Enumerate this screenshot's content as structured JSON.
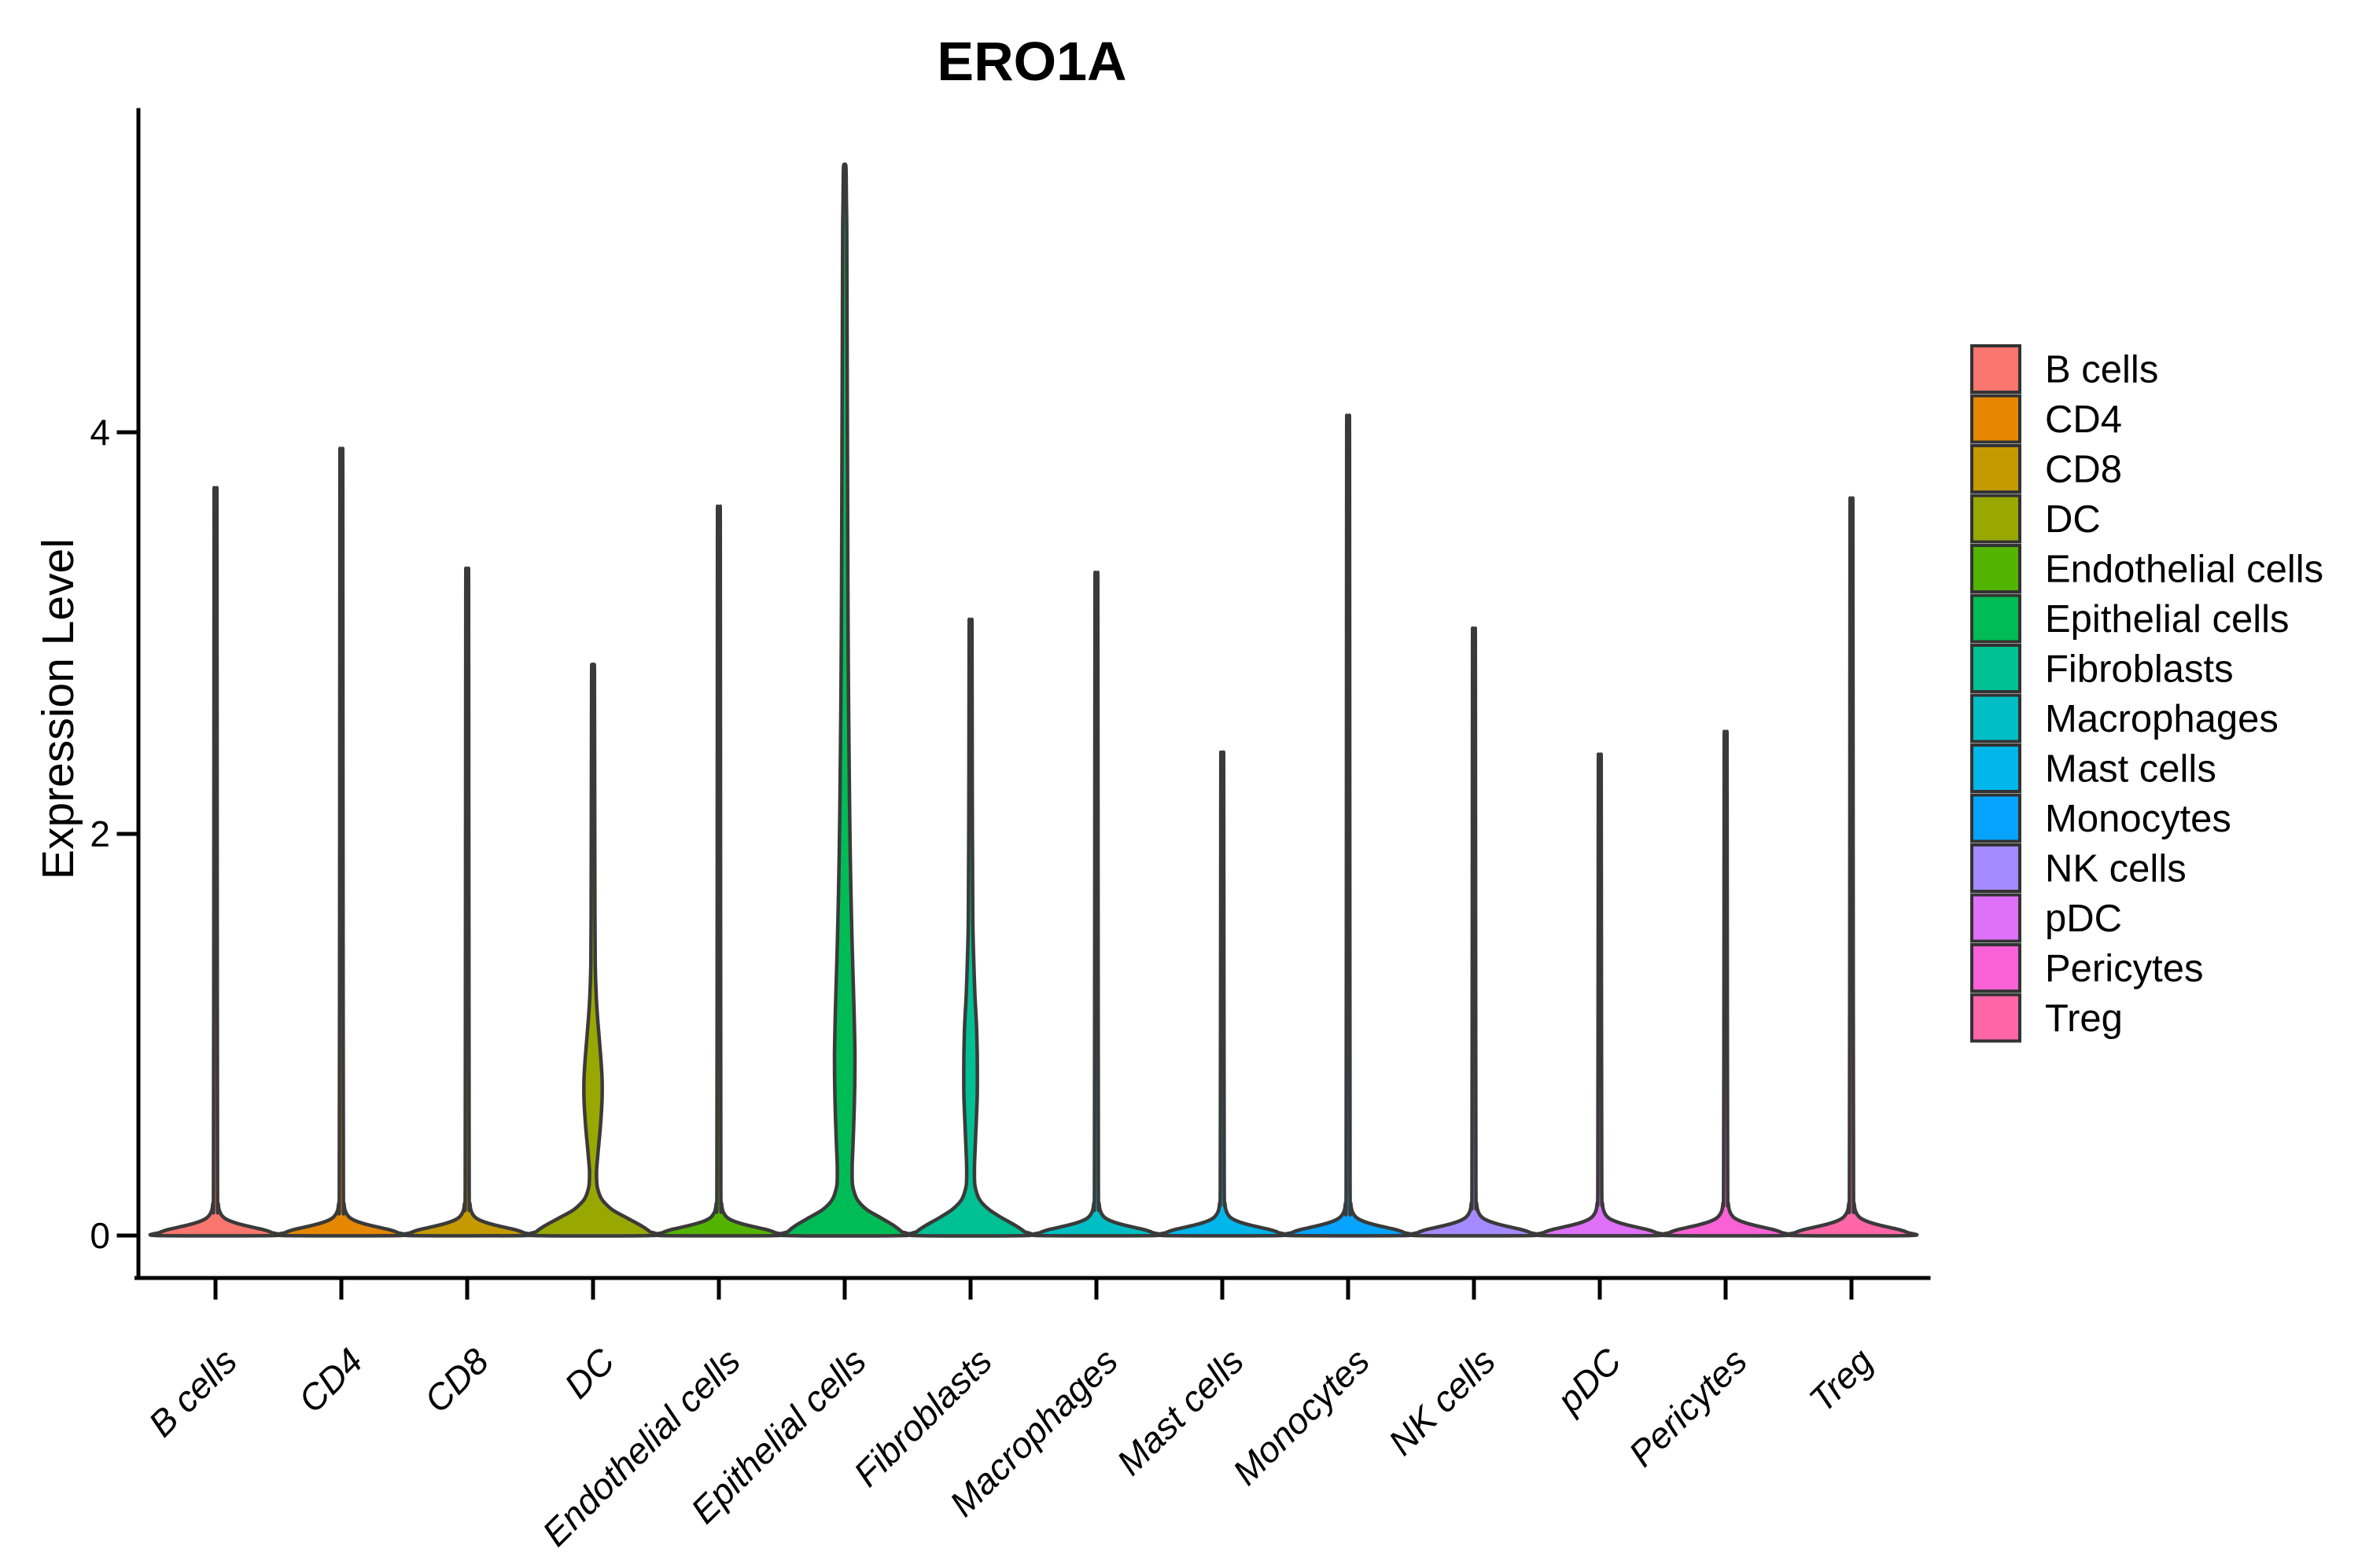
{
  "title": "ERO1A",
  "ylabel": "Expression Level",
  "style": {
    "violin_stroke": "#3a3a3a",
    "axis_color": "#000000",
    "background": "#ffffff"
  },
  "legend": {
    "position": "right",
    "items": [
      {
        "label": "B cells",
        "color": "#F8766D"
      },
      {
        "label": "CD4",
        "color": "#E58700"
      },
      {
        "label": "CD8",
        "color": "#C49A00"
      },
      {
        "label": "DC",
        "color": "#99A800"
      },
      {
        "label": "Endothelial cells",
        "color": "#53B400"
      },
      {
        "label": "Epithelial cells",
        "color": "#00BC56"
      },
      {
        "label": "Fibroblasts",
        "color": "#00C094"
      },
      {
        "label": "Macrophages",
        "color": "#00BFC4"
      },
      {
        "label": "Mast cells",
        "color": "#00B6EB"
      },
      {
        "label": "Monocytes",
        "color": "#06A4FF"
      },
      {
        "label": "NK cells",
        "color": "#A58AFF"
      },
      {
        "label": "pDC",
        "color": "#DF70F8"
      },
      {
        "label": "Pericytes",
        "color": "#FB61D7"
      },
      {
        "label": "Treg",
        "color": "#FF66A8"
      }
    ]
  },
  "chart_data": {
    "type": "violin",
    "title": "ERO1A",
    "xlabel": "",
    "ylabel": "Expression Level",
    "yticks": [
      0,
      2,
      4
    ],
    "ylim": [
      0,
      5.6
    ],
    "grid": false,
    "legend_position": "right",
    "categories": [
      "B cells",
      "CD4",
      "CD8",
      "DC",
      "Endothelial cells",
      "Epithelial cells",
      "Fibroblasts",
      "Macrophages",
      "Mast cells",
      "Monocytes",
      "NK cells",
      "pDC",
      "Pericytes",
      "Treg"
    ],
    "series": [
      {
        "name": "B cells",
        "color": "#F8766D",
        "max_expression": 3.66,
        "profile": [
          [
            0,
            1.0
          ],
          [
            0.015,
            0.95
          ],
          [
            0.03,
            0.8
          ],
          [
            0.05,
            0.5
          ],
          [
            0.07,
            0.27
          ],
          [
            0.09,
            0.14
          ],
          [
            0.12,
            0.07
          ],
          [
            0.16,
            0.045
          ],
          [
            0.24,
            0.034
          ]
        ]
      },
      {
        "name": "CD4",
        "color": "#E58700",
        "max_expression": 3.85,
        "profile": [
          [
            0,
            1.0
          ],
          [
            0.015,
            0.95
          ],
          [
            0.03,
            0.8
          ],
          [
            0.05,
            0.5
          ],
          [
            0.07,
            0.27
          ],
          [
            0.09,
            0.14
          ],
          [
            0.12,
            0.07
          ],
          [
            0.16,
            0.045
          ],
          [
            0.24,
            0.034
          ]
        ]
      },
      {
        "name": "CD8",
        "color": "#C49A00",
        "max_expression": 3.27,
        "profile": [
          [
            0,
            1.0
          ],
          [
            0.015,
            0.95
          ],
          [
            0.03,
            0.8
          ],
          [
            0.05,
            0.5
          ],
          [
            0.07,
            0.27
          ],
          [
            0.09,
            0.14
          ],
          [
            0.12,
            0.07
          ],
          [
            0.16,
            0.045
          ],
          [
            0.24,
            0.034
          ]
        ]
      },
      {
        "name": "DC",
        "color": "#99A800",
        "max_expression": 2.84,
        "profile": [
          [
            0,
            1.0
          ],
          [
            0.02,
            0.96
          ],
          [
            0.05,
            0.81
          ],
          [
            0.09,
            0.56
          ],
          [
            0.13,
            0.32
          ],
          [
            0.18,
            0.15
          ],
          [
            0.24,
            0.073
          ],
          [
            0.32,
            0.06
          ],
          [
            0.42,
            0.087
          ],
          [
            0.55,
            0.127
          ],
          [
            0.68,
            0.153
          ],
          [
            0.78,
            0.153
          ],
          [
            0.88,
            0.133
          ],
          [
            1.0,
            0.1
          ],
          [
            1.1,
            0.073
          ],
          [
            1.2,
            0.053
          ],
          [
            1.35,
            0.037
          ],
          [
            1.6,
            0.032
          ]
        ]
      },
      {
        "name": "Endothelial cells",
        "color": "#53B400",
        "max_expression": 3.57,
        "profile": [
          [
            0,
            1.0
          ],
          [
            0.015,
            0.95
          ],
          [
            0.03,
            0.8
          ],
          [
            0.05,
            0.5
          ],
          [
            0.07,
            0.27
          ],
          [
            0.09,
            0.14
          ],
          [
            0.12,
            0.07
          ],
          [
            0.16,
            0.045
          ],
          [
            0.24,
            0.034
          ]
        ]
      },
      {
        "name": "Epithelial cells",
        "color": "#00BC56",
        "max_expression": 5.33,
        "profile": [
          [
            0,
            1.0
          ],
          [
            0.02,
            0.96
          ],
          [
            0.05,
            0.83
          ],
          [
            0.09,
            0.6
          ],
          [
            0.13,
            0.37
          ],
          [
            0.18,
            0.21
          ],
          [
            0.25,
            0.133
          ],
          [
            0.35,
            0.127
          ],
          [
            0.5,
            0.147
          ],
          [
            0.7,
            0.167
          ],
          [
            0.9,
            0.173
          ],
          [
            1.1,
            0.16
          ],
          [
            1.3,
            0.14
          ],
          [
            1.6,
            0.113
          ],
          [
            1.9,
            0.093
          ],
          [
            2.2,
            0.08
          ],
          [
            2.6,
            0.067
          ],
          [
            3.0,
            0.057
          ],
          [
            3.5,
            0.051
          ],
          [
            4.0,
            0.045
          ],
          [
            4.5,
            0.04
          ],
          [
            5.0,
            0.035
          ]
        ]
      },
      {
        "name": "Fibroblasts",
        "color": "#00C094",
        "max_expression": 3.06,
        "profile": [
          [
            0,
            0.95
          ],
          [
            0.02,
            0.91
          ],
          [
            0.05,
            0.76
          ],
          [
            0.09,
            0.52
          ],
          [
            0.13,
            0.31
          ],
          [
            0.18,
            0.15
          ],
          [
            0.25,
            0.073
          ],
          [
            0.35,
            0.067
          ],
          [
            0.5,
            0.087
          ],
          [
            0.7,
            0.113
          ],
          [
            0.9,
            0.113
          ],
          [
            1.05,
            0.1
          ],
          [
            1.2,
            0.073
          ],
          [
            1.4,
            0.051
          ],
          [
            1.6,
            0.037
          ]
        ]
      },
      {
        "name": "Macrophages",
        "color": "#00BFC4",
        "max_expression": 3.25,
        "profile": [
          [
            0,
            1.0
          ],
          [
            0.015,
            0.95
          ],
          [
            0.03,
            0.8
          ],
          [
            0.05,
            0.5
          ],
          [
            0.07,
            0.27
          ],
          [
            0.09,
            0.14
          ],
          [
            0.12,
            0.07
          ],
          [
            0.16,
            0.045
          ],
          [
            0.24,
            0.034
          ]
        ]
      },
      {
        "name": "Mast cells",
        "color": "#00B6EB",
        "max_expression": 2.38,
        "profile": [
          [
            0,
            1.0
          ],
          [
            0.015,
            0.95
          ],
          [
            0.03,
            0.8
          ],
          [
            0.05,
            0.5
          ],
          [
            0.07,
            0.27
          ],
          [
            0.09,
            0.14
          ],
          [
            0.12,
            0.07
          ],
          [
            0.16,
            0.045
          ],
          [
            0.24,
            0.034
          ]
        ]
      },
      {
        "name": "Monocytes",
        "color": "#06A4FF",
        "max_expression": 4.01,
        "profile": [
          [
            0,
            1.0
          ],
          [
            0.015,
            0.95
          ],
          [
            0.03,
            0.8
          ],
          [
            0.05,
            0.5
          ],
          [
            0.07,
            0.27
          ],
          [
            0.09,
            0.14
          ],
          [
            0.12,
            0.07
          ],
          [
            0.16,
            0.045
          ],
          [
            0.24,
            0.034
          ]
        ]
      },
      {
        "name": "NK cells",
        "color": "#A58AFF",
        "max_expression": 2.98,
        "profile": [
          [
            0,
            1.0
          ],
          [
            0.015,
            0.95
          ],
          [
            0.03,
            0.8
          ],
          [
            0.05,
            0.5
          ],
          [
            0.07,
            0.27
          ],
          [
            0.09,
            0.14
          ],
          [
            0.12,
            0.07
          ],
          [
            0.16,
            0.045
          ],
          [
            0.24,
            0.034
          ]
        ]
      },
      {
        "name": "pDC",
        "color": "#DF70F8",
        "max_expression": 2.37,
        "profile": [
          [
            0,
            1.0
          ],
          [
            0.015,
            0.95
          ],
          [
            0.03,
            0.8
          ],
          [
            0.05,
            0.5
          ],
          [
            0.07,
            0.27
          ],
          [
            0.09,
            0.14
          ],
          [
            0.12,
            0.07
          ],
          [
            0.16,
            0.045
          ],
          [
            0.24,
            0.034
          ]
        ]
      },
      {
        "name": "Pericytes",
        "color": "#FB61D7",
        "max_expression": 2.48,
        "profile": [
          [
            0,
            1.0
          ],
          [
            0.015,
            0.95
          ],
          [
            0.03,
            0.8
          ],
          [
            0.05,
            0.5
          ],
          [
            0.07,
            0.27
          ],
          [
            0.09,
            0.14
          ],
          [
            0.12,
            0.07
          ],
          [
            0.16,
            0.045
          ],
          [
            0.24,
            0.034
          ]
        ]
      },
      {
        "name": "Treg",
        "color": "#FF66A8",
        "max_expression": 3.61,
        "profile": [
          [
            0,
            1.0
          ],
          [
            0.015,
            0.95
          ],
          [
            0.03,
            0.8
          ],
          [
            0.05,
            0.5
          ],
          [
            0.07,
            0.27
          ],
          [
            0.09,
            0.14
          ],
          [
            0.12,
            0.07
          ],
          [
            0.16,
            0.045
          ],
          [
            0.24,
            0.034
          ]
        ]
      }
    ]
  }
}
